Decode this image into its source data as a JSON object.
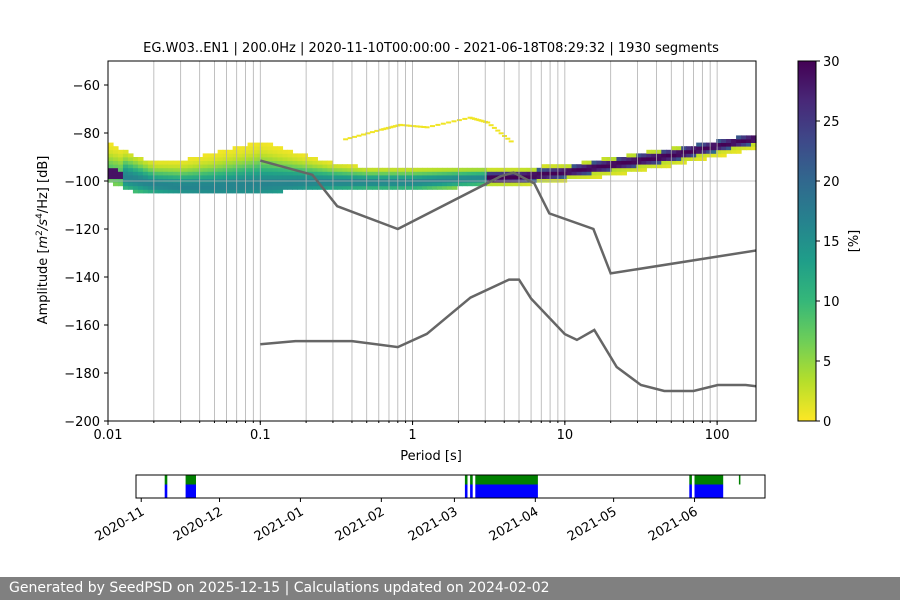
{
  "chart_data": [
    {
      "type": "heatmap",
      "title": "EG.W03..EN1 | 200.0Hz | 2020-11-10T00:00:00 - 2021-06-18T08:29:32 | 1930 segments",
      "xlabel": "Period [s]",
      "ylabel_parts": [
        "Amplitude [",
        "m",
        "2",
        "/",
        "s",
        "4",
        "/Hz] [dB]"
      ],
      "xscale": "log",
      "xlim": [
        0.01,
        180
      ],
      "ylim": [
        -200,
        -50
      ],
      "x_ticks": [
        0.01,
        0.1,
        1,
        10,
        100
      ],
      "x_tick_labels": [
        "0.01",
        "0.1",
        "1",
        "10",
        "100"
      ],
      "y_ticks": [
        -200,
        -180,
        -160,
        -140,
        -120,
        -100,
        -80,
        -60
      ],
      "y_tick_labels": [
        "−200",
        "−180",
        "−160",
        "−140",
        "−120",
        "−100",
        "−80",
        "−60"
      ],
      "vertical_grid_periods": [
        0.02,
        0.03,
        0.04,
        0.05,
        0.06,
        0.07,
        0.08,
        0.09,
        0.1,
        0.2,
        0.3,
        0.4,
        0.5,
        0.6,
        0.7,
        0.8,
        0.9,
        1,
        2,
        3,
        4,
        5,
        6,
        7,
        8,
        9,
        10,
        20,
        30,
        40,
        50,
        60,
        70,
        80,
        90,
        100
      ],
      "horizontal_grid_db": [
        -100
      ],
      "colorbar": {
        "label": "[%]",
        "range": [
          0,
          30
        ],
        "ticks": [
          0,
          5,
          10,
          15,
          20,
          25,
          30
        ],
        "colormap": "viridis-reversed",
        "colors": [
          "#fde725",
          "#b5de2b",
          "#6ece58",
          "#35b779",
          "#1f9e89",
          "#26828e",
          "#31688e",
          "#3e4989",
          "#482878",
          "#440154"
        ]
      },
      "noise_models": [
        {
          "name": "NHNM",
          "color": "#666666",
          "period": [
            0.1,
            0.22,
            0.32,
            0.8,
            3.8,
            4.6,
            6.3,
            7.9,
            15.4,
            20,
            354.8
          ],
          "db": [
            -91.5,
            -97.4,
            -110.5,
            -120.0,
            -98.0,
            -96.5,
            -101.0,
            -113.5,
            -120.0,
            -138.5,
            -126.0
          ]
        },
        {
          "name": "NLNM",
          "color": "#666666",
          "period": [
            0.1,
            0.17,
            0.4,
            0.8,
            1.24,
            2.4,
            4.3,
            5.0,
            6.0,
            10.0,
            12.0,
            15.6,
            21.9,
            31.6,
            45,
            70,
            101,
            154,
            328
          ],
          "db": [
            -168.0,
            -166.7,
            -166.7,
            -169.2,
            -163.7,
            -148.6,
            -141.1,
            -141.1,
            -149.0,
            -163.8,
            -166.2,
            -162.1,
            -177.5,
            -185.0,
            -187.5,
            -187.5,
            -185.0,
            -185.0,
            -187.5
          ]
        }
      ],
      "density_ridge": {
        "description_points_period": [
          0.01,
          0.015,
          0.02,
          0.03,
          0.05,
          0.1,
          0.2,
          0.3,
          0.5,
          1,
          2,
          5,
          10,
          20,
          50,
          100,
          180
        ],
        "mode_db": [
          -97,
          -100,
          -102,
          -103,
          -103,
          -102,
          -101,
          -101,
          -101,
          -101,
          -100,
          -99,
          -97,
          -94,
          -90,
          -86,
          -83
        ],
        "upper_db": [
          -85,
          -90,
          -93,
          -92,
          -89,
          -84,
          -90,
          -93,
          -95,
          -95,
          -95,
          -95,
          -94,
          -91,
          -87,
          -84,
          -81
        ],
        "lower_db": [
          -100,
          -104,
          -105,
          -105,
          -105,
          -104,
          -103,
          -103,
          -103,
          -103,
          -102,
          -101,
          -99,
          -97,
          -93,
          -89,
          -86
        ],
        "secondary_branch_period": [
          0.35,
          0.6,
          0.8,
          1.2,
          2.3,
          3.0,
          4.5
        ],
        "secondary_branch_db": [
          -83,
          -79,
          -77,
          -78,
          -74,
          -76,
          -85
        ]
      }
    },
    {
      "type": "timeline",
      "x_tick_labels": [
        "2020-11",
        "2020-12",
        "2021-01",
        "2021-02",
        "2021-03",
        "2021-04",
        "2021-05",
        "2021-06"
      ],
      "x_tick_dates": [
        "2020-11-01",
        "2020-12-01",
        "2021-01-01",
        "2021-02-01",
        "2021-03-01",
        "2021-04-01",
        "2021-05-01",
        "2021-06-01"
      ],
      "range": [
        "2020-10-30",
        "2021-06-28"
      ],
      "available_color": "#0000ff",
      "used_color": "#008000",
      "segments": [
        {
          "start": "2020-11-10",
          "end": "2020-11-11",
          "available": true,
          "used": true
        },
        {
          "start": "2020-11-18",
          "end": "2020-11-22",
          "available": true,
          "used": true
        },
        {
          "start": "2021-03-05",
          "end": "2021-03-06",
          "available": true,
          "used": true
        },
        {
          "start": "2021-03-07",
          "end": "2021-03-08",
          "available": true,
          "used": true
        },
        {
          "start": "2021-03-09",
          "end": "2021-04-02",
          "available": true,
          "used": true
        },
        {
          "start": "2021-05-30",
          "end": "2021-05-31",
          "available": true,
          "used": true
        },
        {
          "start": "2021-06-01",
          "end": "2021-06-12",
          "available": true,
          "used": true
        },
        {
          "start": "2021-06-18",
          "end": "2021-06-18",
          "available": false,
          "used": true
        }
      ]
    }
  ],
  "footer": {
    "text": "Generated by SeedPSD on 2025-12-15 | Calculations updated on 2024-02-02"
  }
}
